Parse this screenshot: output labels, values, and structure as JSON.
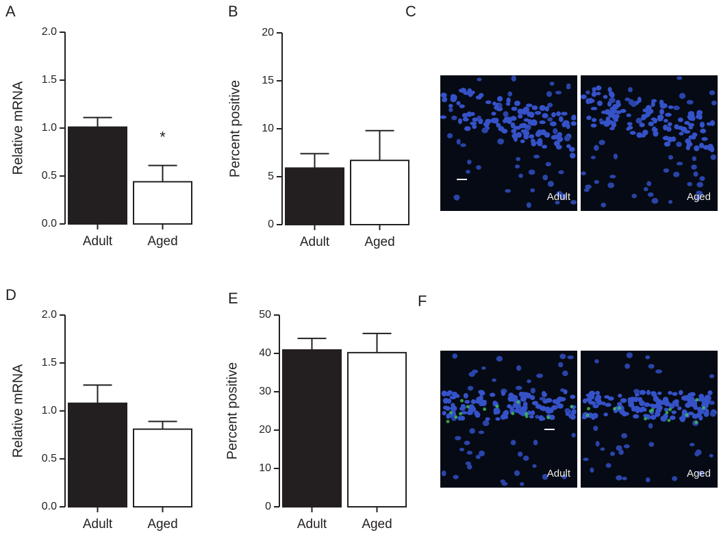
{
  "chart_data": [
    {
      "type": "bar",
      "panel": "A",
      "ylabel": "Relative mRNA",
      "categories": [
        "Adult",
        "Aged"
      ],
      "values": [
        1.01,
        0.44
      ],
      "errors": [
        0.1,
        0.17
      ],
      "colors": [
        "#231f20",
        "#ffffff"
      ],
      "annotation": "*",
      "ylim": [
        0,
        2
      ],
      "yticks": [
        {
          "value": 0,
          "label": "0.0"
        },
        0.5,
        {
          "value": 1,
          "label": "1.0"
        },
        1.5,
        {
          "value": 2,
          "label": "2.0"
        }
      ]
    },
    {
      "type": "bar",
      "panel": "B",
      "ylabel": "Percent positive",
      "categories": [
        "Adult",
        "Aged"
      ],
      "values": [
        5.9,
        6.7
      ],
      "errors": [
        1.5,
        3.1
      ],
      "colors": [
        "#231f20",
        "#ffffff"
      ],
      "ylim": [
        0,
        20
      ],
      "yticks": [
        0,
        5,
        10,
        15,
        20
      ]
    },
    {
      "type": "bar",
      "panel": "D",
      "ylabel": "Relative mRNA",
      "categories": [
        "Adult",
        "Aged"
      ],
      "values": [
        1.08,
        0.81
      ],
      "errors": [
        0.19,
        0.08
      ],
      "colors": [
        "#231f20",
        "#ffffff"
      ],
      "ylim": [
        0,
        2
      ],
      "yticks": [
        {
          "value": 0,
          "label": "0.0"
        },
        0.5,
        {
          "value": 1,
          "label": "1.0"
        },
        1.5,
        {
          "value": 2,
          "label": "2.0"
        }
      ]
    },
    {
      "type": "bar",
      "panel": "E",
      "ylabel": "Percent positive",
      "categories": [
        "Adult",
        "Aged"
      ],
      "values": [
        40.9,
        40.2
      ],
      "errors": [
        3.0,
        5.0
      ],
      "colors": [
        "#231f20",
        "#ffffff"
      ],
      "ylim": [
        0,
        50
      ],
      "yticks": [
        0,
        10,
        20,
        30,
        40,
        50
      ]
    }
  ],
  "image_panels": [
    {
      "panel": "C",
      "labels": [
        "Adult",
        "Aged"
      ]
    },
    {
      "panel": "F",
      "labels": [
        "Adult",
        "Aged"
      ]
    }
  ]
}
